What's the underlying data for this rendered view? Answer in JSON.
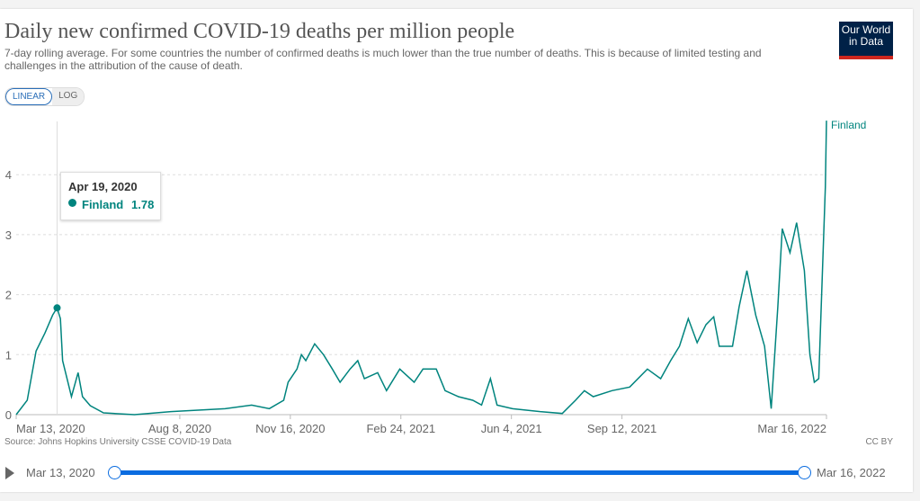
{
  "header": {
    "title": "Daily new confirmed COVID-19 deaths per million people",
    "subtitle": "7-day rolling average. For some countries the number of confirmed deaths is much lower than the true number of deaths. This is because of limited testing and challenges in the attribution of the cause of death.",
    "logo": "Our World in Data"
  },
  "controls": {
    "linear": "LINEAR",
    "log": "LOG"
  },
  "footer": {
    "source": "Source: Johns Hopkins University CSSE COVID-19 Data",
    "license": "CC BY"
  },
  "timeline": {
    "start": "Mar 13, 2020",
    "end": "Mar 16, 2022"
  },
  "tooltip": {
    "date": "Apr 19, 2020",
    "entity": "Finland",
    "value": "1.78"
  },
  "chart_data": {
    "type": "line",
    "title": "Daily new confirmed COVID-19 deaths per million people",
    "x_unit": "days since Mar 13, 2020",
    "x_tick_labels": [
      {
        "day": 0,
        "label": "Mar 13, 2020"
      },
      {
        "day": 148,
        "label": "Aug 8, 2020"
      },
      {
        "day": 248,
        "label": "Nov 16, 2020"
      },
      {
        "day": 348,
        "label": "Feb 24, 2021"
      },
      {
        "day": 448,
        "label": "Jun 4, 2021"
      },
      {
        "day": 548,
        "label": "Sep 12, 2021"
      },
      {
        "day": 733,
        "label": "Mar 16, 2022"
      }
    ],
    "y_ticks": [
      0,
      1,
      2,
      3,
      4
    ],
    "ylim": [
      0,
      4.9
    ],
    "xlim": [
      0,
      733
    ],
    "grid": true,
    "series": [
      {
        "name": "Finland",
        "color": "#00847e",
        "points": [
          [
            0,
            0
          ],
          [
            10,
            0.24
          ],
          [
            18,
            1.06
          ],
          [
            26,
            1.36
          ],
          [
            33,
            1.66
          ],
          [
            37,
            1.78
          ],
          [
            40,
            1.6
          ],
          [
            42,
            0.9
          ],
          [
            46,
            0.6
          ],
          [
            50,
            0.3
          ],
          [
            56,
            0.7
          ],
          [
            60,
            0.3
          ],
          [
            67,
            0.15
          ],
          [
            79,
            0.03
          ],
          [
            107,
            0
          ],
          [
            140,
            0.05
          ],
          [
            189,
            0.1
          ],
          [
            213,
            0.16
          ],
          [
            229,
            0.1
          ],
          [
            242,
            0.24
          ],
          [
            246,
            0.54
          ],
          [
            254,
            0.76
          ],
          [
            258,
            1.0
          ],
          [
            262,
            0.9
          ],
          [
            270,
            1.18
          ],
          [
            278,
            1.0
          ],
          [
            286,
            0.76
          ],
          [
            293,
            0.54
          ],
          [
            302,
            0.76
          ],
          [
            309,
            0.9
          ],
          [
            315,
            0.6
          ],
          [
            327,
            0.7
          ],
          [
            335,
            0.4
          ],
          [
            347,
            0.76
          ],
          [
            360,
            0.54
          ],
          [
            368,
            0.76
          ],
          [
            380,
            0.76
          ],
          [
            388,
            0.4
          ],
          [
            400,
            0.3
          ],
          [
            413,
            0.24
          ],
          [
            421,
            0.16
          ],
          [
            429,
            0.6
          ],
          [
            435,
            0.16
          ],
          [
            449,
            0.1
          ],
          [
            474,
            0.05
          ],
          [
            494,
            0.02
          ],
          [
            506,
            0.24
          ],
          [
            514,
            0.4
          ],
          [
            522,
            0.3
          ],
          [
            539,
            0.4
          ],
          [
            555,
            0.46
          ],
          [
            571,
            0.76
          ],
          [
            583,
            0.6
          ],
          [
            592,
            0.9
          ],
          [
            600,
            1.14
          ],
          [
            608,
            1.6
          ],
          [
            616,
            1.2
          ],
          [
            624,
            1.5
          ],
          [
            631,
            1.63
          ],
          [
            636,
            1.14
          ],
          [
            648,
            1.14
          ],
          [
            654,
            1.8
          ],
          [
            661,
            2.4
          ],
          [
            669,
            1.66
          ],
          [
            677,
            1.14
          ],
          [
            683,
            0.1
          ],
          [
            689,
            1.8
          ],
          [
            693,
            3.1
          ],
          [
            700,
            2.7
          ],
          [
            706,
            3.2
          ],
          [
            713,
            2.4
          ],
          [
            718,
            1.0
          ],
          [
            722,
            0.54
          ],
          [
            726,
            0.6
          ],
          [
            732,
            3.8
          ],
          [
            733,
            4.9
          ]
        ]
      }
    ],
    "highlight": {
      "day": 37,
      "value": 1.78
    }
  }
}
